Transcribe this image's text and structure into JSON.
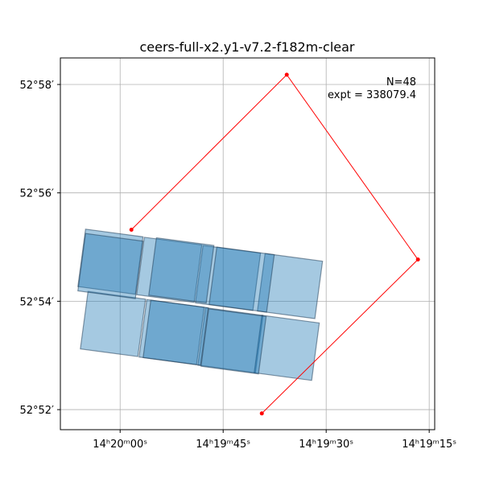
{
  "chart_data": {
    "type": "footprint",
    "title": "ceers-full-x2.y1-v7.2-f182m-clear",
    "annotations": [
      "N=48",
      "expt = 338079.4"
    ],
    "xlim": [
      1208.7,
      1154.2
    ],
    "ylim": [
      51.63,
      58.49
    ],
    "xticks": [
      {
        "value": 1200,
        "label": "14ʰ20ᵐ00ˢ"
      },
      {
        "value": 1185,
        "label": "14ʰ19ᵐ45ˢ"
      },
      {
        "value": 1170,
        "label": "14ʰ19ᵐ30ˢ"
      },
      {
        "value": 1155,
        "label": "14ʰ19ᵐ15ˢ"
      }
    ],
    "yticks": [
      {
        "value": 52,
        "label": "52°52′"
      },
      {
        "value": 54,
        "label": "52°54′"
      },
      {
        "value": 56,
        "label": "52°56′"
      },
      {
        "value": 58,
        "label": "52°58′"
      }
    ],
    "grid": true,
    "footprints": {
      "color": "#1f77b4",
      "x": [
        1201.41,
        1192.85,
        1184.3,
        1175.27,
        1201.05,
        1192.5,
        1183.94,
        1175.74,
        1191.09,
        1182.3,
        1191.91,
        1183.48,
        1201.41
      ],
      "y": [
        54.73,
        54.58,
        54.43,
        54.28,
        53.58,
        53.43,
        53.28,
        53.14,
        54.57,
        54.4,
        53.42,
        53.26,
        54.65
      ]
    },
    "outline": {
      "color": "#ff0000",
      "x": [
        1198.36,
        1175.74,
        1156.64,
        1179.37
      ],
      "y": [
        55.32,
        58.18,
        54.77,
        51.93
      ]
    }
  }
}
